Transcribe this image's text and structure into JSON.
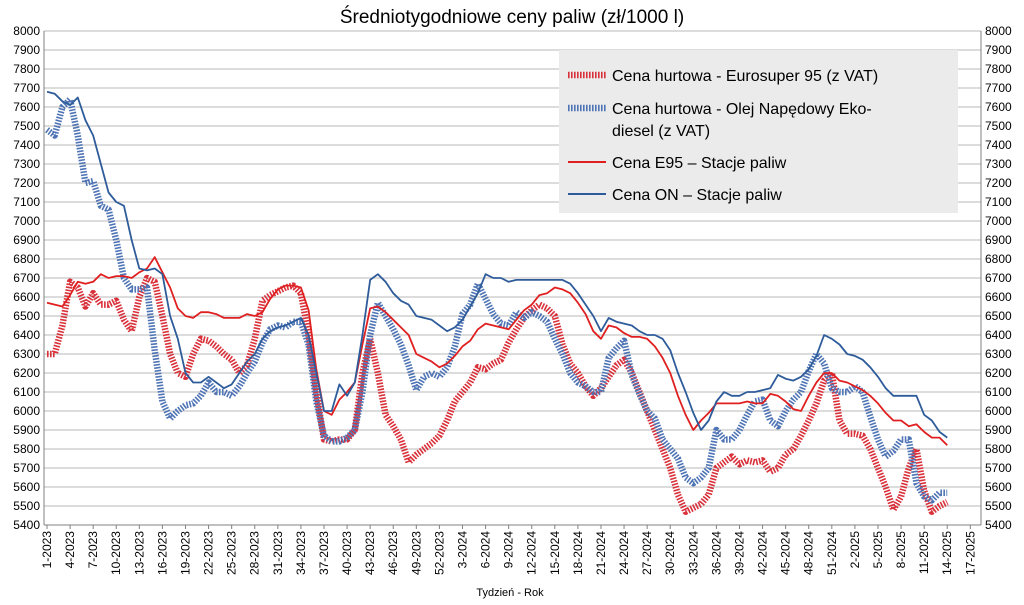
{
  "chart_data": {
    "type": "line",
    "title": "Średniotygodniowe ceny paliw (zł/1000 l)",
    "xlabel": "Tydzień - Rok",
    "ylabel": "",
    "ylim": [
      5400,
      8000
    ],
    "y_ticks": [
      5400,
      5500,
      5600,
      5700,
      5800,
      5900,
      6000,
      6100,
      6200,
      6300,
      6400,
      6500,
      6600,
      6700,
      6800,
      6900,
      7000,
      7100,
      7200,
      7300,
      7400,
      7500,
      7600,
      7700,
      7800,
      7900,
      8000
    ],
    "y_tick_labels": [
      "5400",
      "5500",
      "5600",
      "5700",
      "5800",
      "5900",
      "6000",
      "6100",
      "6200",
      "6300",
      "6400",
      "6500",
      "6600",
      "6700",
      "6800",
      "6900",
      "7000",
      "7100",
      "7200",
      "7300",
      "7400",
      "7500",
      "7600",
      "7700",
      "7800",
      "7900",
      "8000"
    ],
    "x_tick_labels": [
      "1-2023",
      "4-2023",
      "7-2023",
      "10-2023",
      "13-2023",
      "16-2023",
      "19-2023",
      "22-2023",
      "25-2023",
      "28-2023",
      "31-2023",
      "34-2023",
      "37-2023",
      "40-2023",
      "43-2023",
      "46-2023",
      "49-2023",
      "52-2023",
      "3-2024",
      "6-2024",
      "9-2024",
      "12-2024",
      "15-2024",
      "18-2024",
      "21-2024",
      "24-2024",
      "27-2024",
      "30-2024",
      "33-2024",
      "36-2024",
      "39-2024",
      "42-2024",
      "45-2024",
      "48-2024",
      "51-2024",
      "2-2025",
      "5-2025",
      "8-2025",
      "11-2025",
      "14-2025",
      "17-2025"
    ],
    "point_count": 122,
    "grid": true,
    "legend_position": "top-right",
    "series": [
      {
        "name": "Cena hurtowa  - Eurosuper 95 (z VAT)",
        "color": "#d9303a",
        "style": "thick-dashed",
        "values": [
          6300,
          6300,
          6450,
          6680,
          6650,
          6550,
          6620,
          6560,
          6560,
          6580,
          6480,
          6420,
          6600,
          6700,
          6680,
          6500,
          6300,
          6200,
          6180,
          6300,
          6380,
          6370,
          6340,
          6300,
          6270,
          6200,
          6240,
          6380,
          6580,
          6610,
          6630,
          6650,
          6660,
          6620,
          6400,
          6100,
          5850,
          5840,
          5850,
          5850,
          5900,
          6200,
          6380,
          6200,
          5980,
          5920,
          5850,
          5730,
          5770,
          5800,
          5830,
          5870,
          5950,
          6050,
          6100,
          6150,
          6230,
          6220,
          6250,
          6270,
          6360,
          6430,
          6490,
          6530,
          6560,
          6540,
          6500,
          6350,
          6250,
          6200,
          6130,
          6080,
          6120,
          6180,
          6240,
          6270,
          6200,
          6100,
          6000,
          5900,
          5800,
          5700,
          5560,
          5470,
          5490,
          5510,
          5560,
          5700,
          5730,
          5760,
          5720,
          5740,
          5730,
          5740,
          5680,
          5700,
          5770,
          5800,
          5870,
          5950,
          6040,
          6160,
          6200,
          5950,
          5880,
          5880,
          5870,
          5800,
          5700,
          5600,
          5480,
          5550,
          5700,
          5800,
          5580,
          5470,
          5500,
          5520
        ]
      },
      {
        "name": "Cena hurtowa - Olej Napędowy Eko-diesel (z VAT)",
        "color": "#4e74b5",
        "style": "thick-dashed",
        "values": [
          7480,
          7450,
          7600,
          7640,
          7450,
          7200,
          7210,
          7080,
          7060,
          6900,
          6700,
          6640,
          6640,
          6650,
          6320,
          6050,
          5960,
          6000,
          6030,
          6040,
          6080,
          6150,
          6100,
          6100,
          6080,
          6130,
          6200,
          6260,
          6360,
          6430,
          6450,
          6440,
          6470,
          6470,
          6350,
          6050,
          5870,
          5840,
          5840,
          5860,
          5900,
          6100,
          6400,
          6570,
          6500,
          6430,
          6350,
          6240,
          6110,
          6180,
          6200,
          6180,
          6230,
          6340,
          6510,
          6560,
          6670,
          6590,
          6510,
          6460,
          6450,
          6520,
          6490,
          6520,
          6500,
          6470,
          6380,
          6300,
          6200,
          6150,
          6130,
          6100,
          6100,
          6280,
          6330,
          6370,
          6190,
          6090,
          6000,
          5960,
          5850,
          5800,
          5750,
          5650,
          5620,
          5650,
          5700,
          5900,
          5850,
          5850,
          5900,
          5980,
          6050,
          6060,
          5950,
          5920,
          6000,
          6060,
          6100,
          6210,
          6300,
          6250,
          6120,
          6100,
          6100,
          6130,
          6100,
          5970,
          5850,
          5760,
          5790,
          5850,
          5850,
          5620,
          5550,
          5530,
          5570,
          5570
        ]
      },
      {
        "name": "Cena E95 – Stacje paliw",
        "color": "#e02020",
        "style": "solid",
        "values": [
          6570,
          6560,
          6550,
          6610,
          6680,
          6670,
          6680,
          6720,
          6700,
          6710,
          6710,
          6700,
          6730,
          6750,
          6810,
          6730,
          6650,
          6540,
          6500,
          6490,
          6520,
          6520,
          6510,
          6490,
          6490,
          6490,
          6510,
          6500,
          6520,
          6590,
          6640,
          6660,
          6660,
          6650,
          6530,
          6220,
          6000,
          5980,
          6060,
          6100,
          6150,
          6350,
          6540,
          6550,
          6520,
          6480,
          6440,
          6400,
          6300,
          6280,
          6260,
          6230,
          6250,
          6290,
          6340,
          6370,
          6430,
          6460,
          6450,
          6440,
          6430,
          6480,
          6530,
          6560,
          6610,
          6620,
          6650,
          6640,
          6620,
          6570,
          6510,
          6420,
          6380,
          6450,
          6440,
          6410,
          6390,
          6390,
          6380,
          6340,
          6280,
          6200,
          6080,
          5980,
          5900,
          5950,
          5990,
          6040,
          6040,
          6040,
          6040,
          6050,
          6040,
          6040,
          6090,
          6080,
          6050,
          6010,
          6000,
          6080,
          6150,
          6200,
          6200,
          6160,
          6150,
          6130,
          6110,
          6080,
          6040,
          5990,
          5950,
          5950,
          5920,
          5930,
          5890,
          5860,
          5860,
          5820
        ]
      },
      {
        "name": "Cena ON – Stacje paliw",
        "color": "#2e5c9a",
        "style": "solid",
        "values": [
          7680,
          7670,
          7630,
          7610,
          7650,
          7530,
          7450,
          7300,
          7150,
          7100,
          7080,
          6900,
          6750,
          6740,
          6750,
          6720,
          6500,
          6380,
          6200,
          6150,
          6150,
          6180,
          6150,
          6120,
          6140,
          6200,
          6260,
          6300,
          6380,
          6420,
          6440,
          6450,
          6470,
          6490,
          6400,
          6200,
          6000,
          6000,
          6140,
          6080,
          6150,
          6400,
          6690,
          6720,
          6680,
          6620,
          6580,
          6560,
          6500,
          6490,
          6480,
          6450,
          6420,
          6440,
          6480,
          6550,
          6620,
          6720,
          6700,
          6700,
          6680,
          6690,
          6690,
          6690,
          6690,
          6690,
          6690,
          6690,
          6670,
          6620,
          6560,
          6500,
          6420,
          6490,
          6470,
          6460,
          6450,
          6420,
          6400,
          6400,
          6380,
          6320,
          6200,
          6100,
          5990,
          5900,
          5950,
          6050,
          6100,
          6080,
          6080,
          6100,
          6100,
          6110,
          6120,
          6190,
          6170,
          6160,
          6180,
          6220,
          6290,
          6400,
          6380,
          6350,
          6300,
          6290,
          6270,
          6230,
          6180,
          6120,
          6080,
          6080,
          6080,
          6080,
          5980,
          5950,
          5890,
          5860
        ]
      }
    ]
  }
}
